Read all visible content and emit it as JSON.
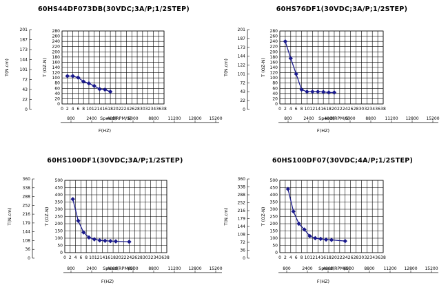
{
  "chart_data": [
    {
      "type": "line",
      "title": "60HS44DF073DB(30VDC;3A/P;1/2STEP)",
      "xlabel": "Speed(RPM/S)",
      "x2label": "F(HZ)",
      "ylabel": "T (OZ-N)",
      "y2label": "T(N.cm)",
      "xlim": [
        0,
        38
      ],
      "ylim": [
        0,
        280
      ],
      "x_ticks": [
        "0",
        "2",
        "4",
        "6",
        "8",
        "10",
        "12",
        "14",
        "16",
        "18",
        "20",
        "22",
        "24",
        "26",
        "28",
        "30",
        "32",
        "34",
        "36",
        "38"
      ],
      "y_ticks": [
        "0",
        "20",
        "40",
        "60",
        "80",
        "100",
        "120",
        "140",
        "160",
        "180",
        "200",
        "220",
        "240",
        "260",
        "280"
      ],
      "x2_ticks": [
        "800",
        "2400",
        "4000",
        "6000",
        "8800",
        "11200",
        "12800",
        "15200"
      ],
      "y2_ticks": [
        "0",
        "22",
        "43",
        "72",
        "101",
        "144",
        "173",
        "187",
        "201"
      ],
      "series": [
        {
          "x": [
            2,
            4,
            6,
            8,
            10,
            12,
            14,
            16,
            18,
            20,
            22
          ],
          "y": [
            107,
            107,
            101,
            86,
            79,
            69,
            57,
            55,
            47,
            null,
            null
          ]
        }
      ]
    },
    {
      "type": "line",
      "title": "60HS76DF1(30VDC;3A/P;1/2STEP)",
      "xlabel": "Speed(RPM/S)",
      "x2label": "F(HZ)",
      "ylabel": "T (OZ-N)",
      "y2label": "T(N.cm)",
      "xlim": [
        0,
        38
      ],
      "ylim": [
        0,
        280
      ],
      "x_ticks": [
        "0",
        "2",
        "4",
        "6",
        "8",
        "10",
        "12",
        "14",
        "16",
        "18",
        "20",
        "22",
        "24",
        "26",
        "28",
        "30",
        "32",
        "34",
        "36",
        "38"
      ],
      "y_ticks": [
        "0",
        "20",
        "40",
        "60",
        "80",
        "100",
        "120",
        "140",
        "160",
        "180",
        "200",
        "220",
        "240",
        "260",
        "280"
      ],
      "x2_ticks": [
        "800",
        "2400",
        "4000",
        "6000",
        "8800",
        "11200",
        "12800",
        "15200"
      ],
      "y2_ticks": [
        "0",
        "22",
        "43",
        "72",
        "101",
        "122",
        "144",
        "173",
        "187",
        "201"
      ],
      "series": [
        {
          "x": [
            2,
            4,
            6,
            8,
            10,
            12,
            14,
            16,
            18,
            20,
            22
          ],
          "y": [
            240,
            175,
            115,
            55,
            47,
            47,
            47,
            46,
            44,
            44,
            null
          ]
        }
      ]
    },
    {
      "type": "line",
      "title": "60HS100DF1(30VDC;3A/P;1/2STEP)",
      "xlabel": "Speed(RPM/S)",
      "x2label": "F(HZ)",
      "ylabel": "T (OZ-N)",
      "y2label": "T(N.cm)",
      "xlim": [
        0,
        38
      ],
      "ylim": [
        0,
        500
      ],
      "x_ticks": [
        "0",
        "2",
        "4",
        "6",
        "8",
        "10",
        "12",
        "14",
        "16",
        "18",
        "20",
        "22",
        "24",
        "26",
        "28",
        "30",
        "32",
        "34",
        "36",
        "38"
      ],
      "y_ticks": [
        "0",
        "50",
        "100",
        "150",
        "200",
        "250",
        "300",
        "350",
        "400",
        "450",
        "500"
      ],
      "x2_ticks": [
        "800",
        "2400",
        "4000",
        "6000",
        "8800",
        "11200",
        "12800",
        "15200"
      ],
      "y2_ticks": [
        "0",
        "36",
        "108",
        "144",
        "179",
        "216",
        "252",
        "288",
        "338",
        "360"
      ],
      "series": [
        {
          "x": [
            3,
            5,
            7,
            9,
            11,
            13,
            15,
            17,
            19,
            21,
            24
          ],
          "y": [
            370,
            220,
            140,
            105,
            92,
            85,
            82,
            80,
            78,
            null,
            75
          ]
        }
      ]
    },
    {
      "type": "line",
      "title": "60HS100DF07(30VDC;4A/P;1/2STEP)",
      "xlabel": "Speed(RPM/S)",
      "x2label": "F(HZ)",
      "ylabel": "T (OZ-N)",
      "y2label": "T(N.cm)",
      "xlim": [
        0,
        38
      ],
      "ylim": [
        0,
        500
      ],
      "x_ticks": [
        "0",
        "2",
        "4",
        "6",
        "8",
        "10",
        "12",
        "14",
        "16",
        "18",
        "20",
        "22",
        "24",
        "26",
        "28",
        "30",
        "32",
        "34",
        "36",
        "38"
      ],
      "y_ticks": [
        "0",
        "50",
        "100",
        "150",
        "200",
        "250",
        "300",
        "350",
        "400",
        "450",
        "500"
      ],
      "x2_ticks": [
        "800",
        "2400",
        "4000",
        "6000",
        "8800",
        "11200",
        "12800",
        "15200"
      ],
      "y2_ticks": [
        "0",
        "36",
        "72",
        "108",
        "144",
        "179",
        "216",
        "252",
        "288",
        "338",
        "360"
      ],
      "series": [
        {
          "x": [
            3,
            5,
            7,
            9,
            11,
            13,
            15,
            17,
            19,
            21,
            24
          ],
          "y": [
            440,
            285,
            200,
            160,
            115,
            100,
            95,
            90,
            88,
            null,
            80
          ]
        }
      ]
    }
  ]
}
